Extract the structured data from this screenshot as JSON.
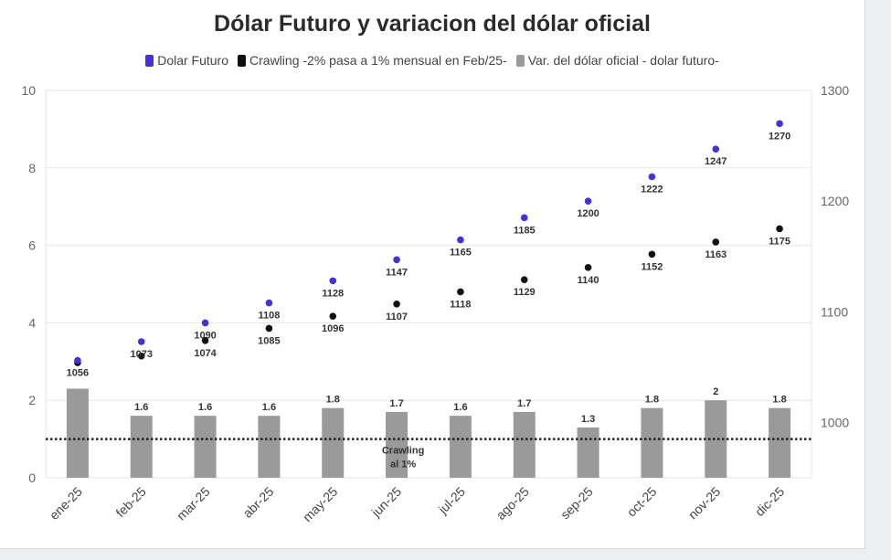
{
  "chart_data": {
    "type": "bar",
    "title": "Dólar Futuro y variacion del dólar oficial",
    "categories": [
      "ene-25",
      "feb-25",
      "mar-25",
      "abr-25",
      "may-25",
      "jun-25",
      "jul-25",
      "ago-25",
      "sep-25",
      "oct-25",
      "nov-25",
      "dic-25"
    ],
    "series": [
      {
        "name": "Dolar Futuro",
        "type": "scatter",
        "axis": "right",
        "color": "#4a2fd6",
        "values": [
          1056,
          1073,
          1090,
          1108,
          1128,
          1147,
          1165,
          1185,
          1200,
          1222,
          1247,
          1270
        ],
        "labels": [
          "1056",
          "1073",
          "1090",
          "1108",
          "1128",
          "1147",
          "1165",
          "1185",
          "1200",
          "1222",
          "1247",
          "1270"
        ]
      },
      {
        "name": "Crawling -2% pasa a 1% mensual en Feb/25-",
        "type": "scatter",
        "axis": "right",
        "color": "#111111",
        "values": [
          1054,
          1060,
          1074,
          1085,
          1096,
          1107,
          1118,
          1129,
          1140,
          1152,
          1163,
          1175
        ],
        "labels": [
          "",
          "",
          "1074",
          "1085",
          "1096",
          "1107",
          "1118",
          "1129",
          "1140",
          "1152",
          "1163",
          "1175"
        ]
      },
      {
        "name": "Var. del dólar oficial - dolar futuro-",
        "type": "bar",
        "axis": "left",
        "color": "#9a9a9a",
        "values": [
          2.3,
          1.6,
          1.6,
          1.6,
          1.8,
          1.7,
          1.6,
          1.7,
          1.3,
          1.8,
          2,
          1.8
        ],
        "labels": [
          "",
          "1.6",
          "1.6",
          "1.6",
          "1.8",
          "1.7",
          "1.6",
          "1.7",
          "1.3",
          "1.8",
          "2",
          "1.8"
        ]
      }
    ],
    "y_left": {
      "min": 0,
      "max": 10,
      "ticks": [
        "0",
        "2",
        "4",
        "6",
        "8",
        "10"
      ]
    },
    "y_right": {
      "min": 950,
      "max": 1300,
      "ticks": [
        "1000",
        "1100",
        "1200",
        "1300"
      ]
    },
    "reference_line": {
      "value": 1,
      "axis": "left",
      "style": "dotted"
    },
    "annotation": {
      "lines": [
        "Crawling",
        "al 1%"
      ]
    },
    "grid": true,
    "legend_position": "top"
  }
}
